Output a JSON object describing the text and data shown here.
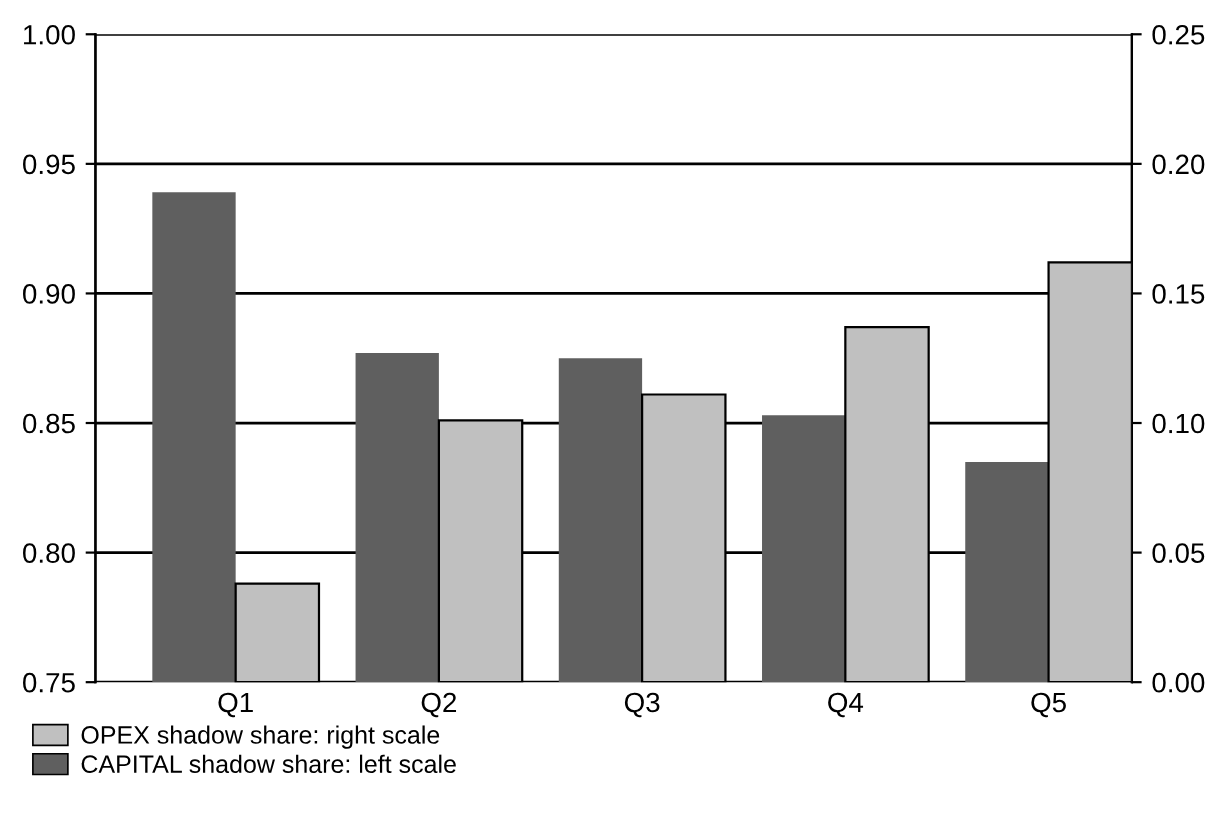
{
  "chart_data": {
    "type": "bar",
    "categories": [
      "Q1",
      "Q2",
      "Q3",
      "Q4",
      "Q5"
    ],
    "series": [
      {
        "name": "CAPITAL shadow share: left scale",
        "color": "#5f5f5f",
        "values": [
          0.939,
          0.877,
          0.875,
          0.853,
          0.835
        ]
      },
      {
        "name": "OPEX shadow share: right scale",
        "color": "#c0c0c0",
        "values": [
          0.038,
          0.101,
          0.111,
          0.137,
          0.162
        ],
        "axis": "y2"
      }
    ],
    "ylim": [
      0.75,
      1.0
    ],
    "yticks": [
      {
        "value": 0.75,
        "label": "0.75"
      },
      {
        "value": 0.8,
        "label": "0.80"
      },
      {
        "value": 0.85,
        "label": "0.85"
      },
      {
        "value": 0.9,
        "label": "0.90"
      },
      {
        "value": 0.95,
        "label": "0.95"
      },
      {
        "value": 1.0,
        "label": "1.00"
      }
    ],
    "y2lim": [
      0,
      0.25
    ],
    "y2ticks": [
      {
        "value": 0,
        "label": "0.00"
      },
      {
        "value": 0.05,
        "label": "0.05"
      },
      {
        "value": 0.1,
        "label": "0.10"
      },
      {
        "value": 0.15,
        "label": "0.15"
      },
      {
        "value": 0.2,
        "label": "0.20"
      },
      {
        "value": 0.25,
        "label": "0.25"
      }
    ],
    "grid": "y",
    "legend": "bottom left"
  }
}
